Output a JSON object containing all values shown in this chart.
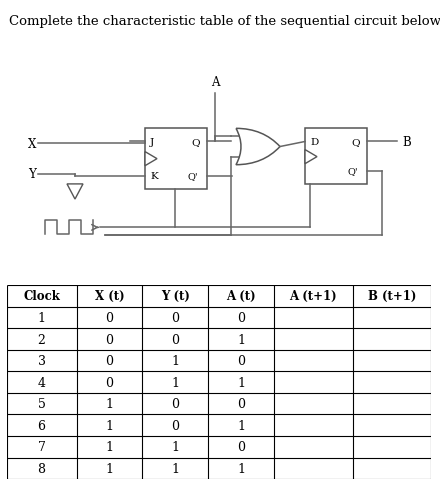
{
  "title": "Complete the characteristic table of the sequential circuit below.",
  "title_fontsize": 9.5,
  "table_headers": [
    "Clock",
    "X (t)",
    "Y (t)",
    "A (t)",
    "A (t+1)",
    "B (t+1)"
  ],
  "table_data": [
    [
      "1",
      "0",
      "0",
      "0",
      "",
      ""
    ],
    [
      "2",
      "0",
      "0",
      "1",
      "",
      ""
    ],
    [
      "3",
      "0",
      "1",
      "0",
      "",
      ""
    ],
    [
      "4",
      "0",
      "1",
      "1",
      "",
      ""
    ],
    [
      "5",
      "1",
      "0",
      "0",
      "",
      ""
    ],
    [
      "6",
      "1",
      "0",
      "1",
      "",
      ""
    ],
    [
      "7",
      "1",
      "1",
      "0",
      "",
      ""
    ],
    [
      "8",
      "1",
      "1",
      "1",
      "",
      ""
    ]
  ],
  "background_color": "#ffffff",
  "line_color": "#888888",
  "wire_color": "#888888",
  "text_color": "#333333"
}
